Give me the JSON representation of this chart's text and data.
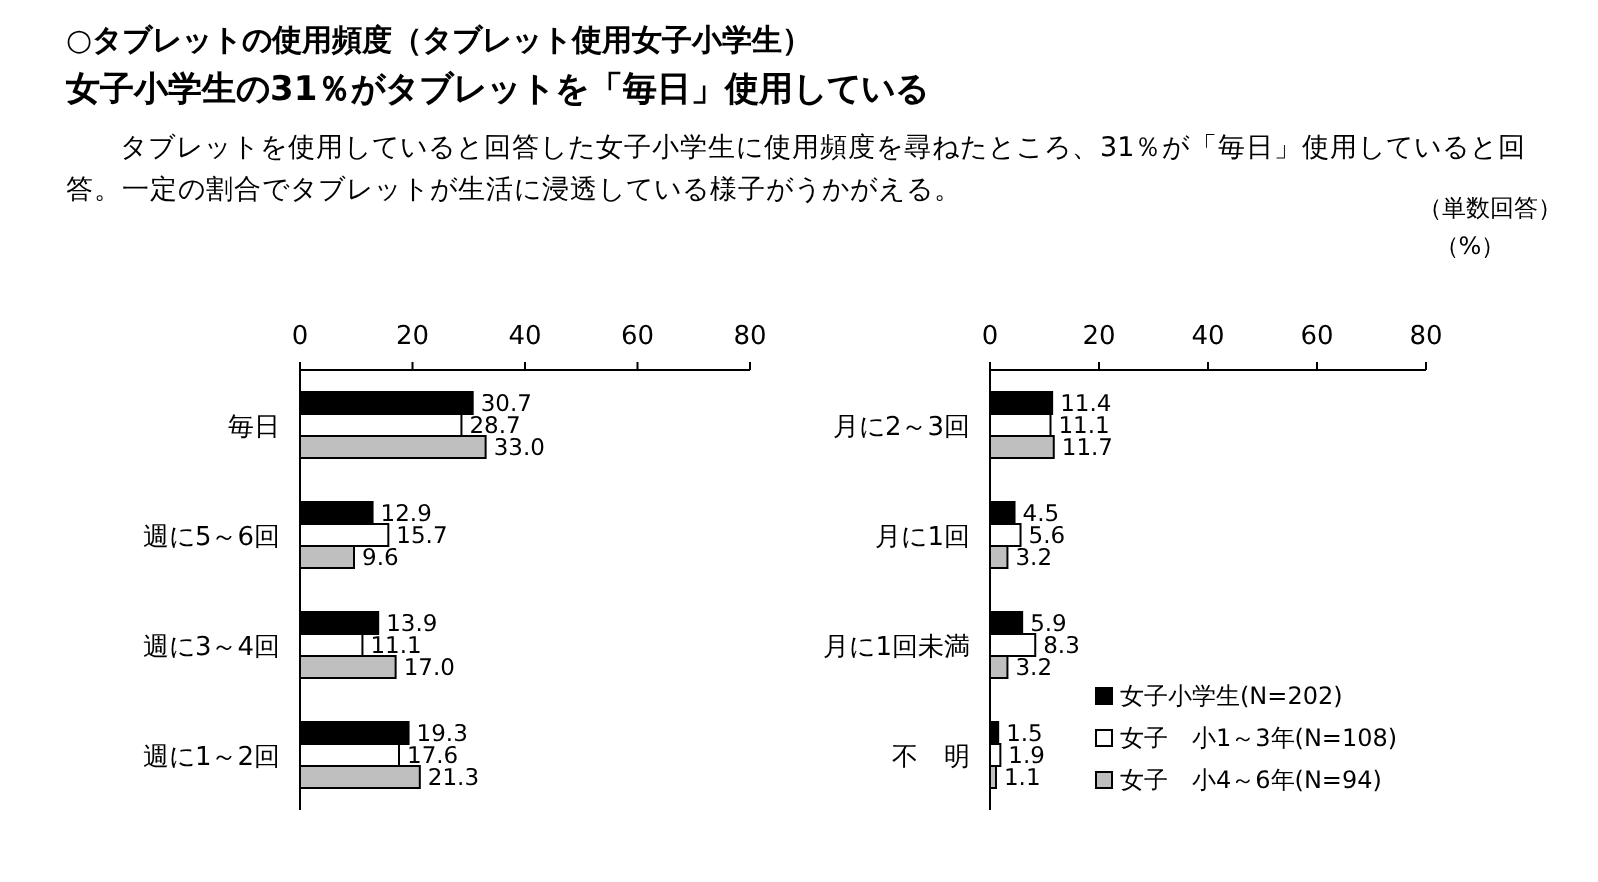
{
  "chart_data": [
    {
      "type": "bar",
      "orientation": "horizontal",
      "title": "○タブレットの使用頻度（タブレット使用女子小学生）",
      "subtitle": "女子小学生の31％がタブレットを「毎日」使用している",
      "annotations": [
        "タブレットを使用していると回答した女子小学生に使用頻度を尋ねたところ、31％が「毎日」使用していると回答。一定の割合でタブレットが生活に浸透している様子がうかがえる。",
        "（単数回答）",
        "（%）"
      ],
      "categories": [
        "毎日",
        "週に5～6回",
        "週に3～4回",
        "週に1～2回"
      ],
      "series": [
        {
          "color": "#000000",
          "values": [
            30.7,
            12.9,
            13.9,
            19.3
          ],
          "value_labels": [
            "30.7",
            "12.9",
            "13.9",
            "19.3"
          ]
        },
        {
          "color": "#ffffff",
          "values": [
            28.7,
            15.7,
            11.1,
            17.6
          ],
          "value_labels": [
            "28.7",
            "15.7",
            "11.1",
            "17.6"
          ]
        },
        {
          "color": "#bfbfbf",
          "values": [
            33.0,
            9.6,
            17.0,
            21.3
          ],
          "value_labels": [
            "33.0",
            "9.6",
            "17.0",
            "21.3"
          ]
        }
      ],
      "xlim": [
        0,
        80
      ],
      "xticks": [
        0,
        20,
        40,
        60,
        80
      ]
    },
    {
      "type": "bar",
      "orientation": "horizontal",
      "categories": [
        "月に2～3回",
        "月に1回",
        "月に1回未満",
        "不　明"
      ],
      "series": [
        {
          "name": "女子小学生(N=202)",
          "color": "#000000",
          "values": [
            11.4,
            4.5,
            5.9,
            1.5
          ],
          "value_labels": [
            "11.4",
            "4.5",
            "5.9",
            "1.5"
          ]
        },
        {
          "name": "女子　小1～3年(N=108)",
          "color": "#ffffff",
          "values": [
            11.1,
            5.6,
            8.3,
            1.9
          ],
          "value_labels": [
            "11.1",
            "5.6",
            "8.3",
            "1.9"
          ]
        },
        {
          "name": "女子　小4～6年(N=94)",
          "color": "#bfbfbf",
          "values": [
            11.7,
            3.2,
            3.2,
            1.1
          ],
          "value_labels": [
            "11.7",
            "3.2",
            "3.2",
            "1.1"
          ]
        }
      ],
      "xlim": [
        0,
        80
      ],
      "xticks": [
        0,
        20,
        40,
        60,
        80
      ],
      "legend": "bottom right"
    }
  ]
}
